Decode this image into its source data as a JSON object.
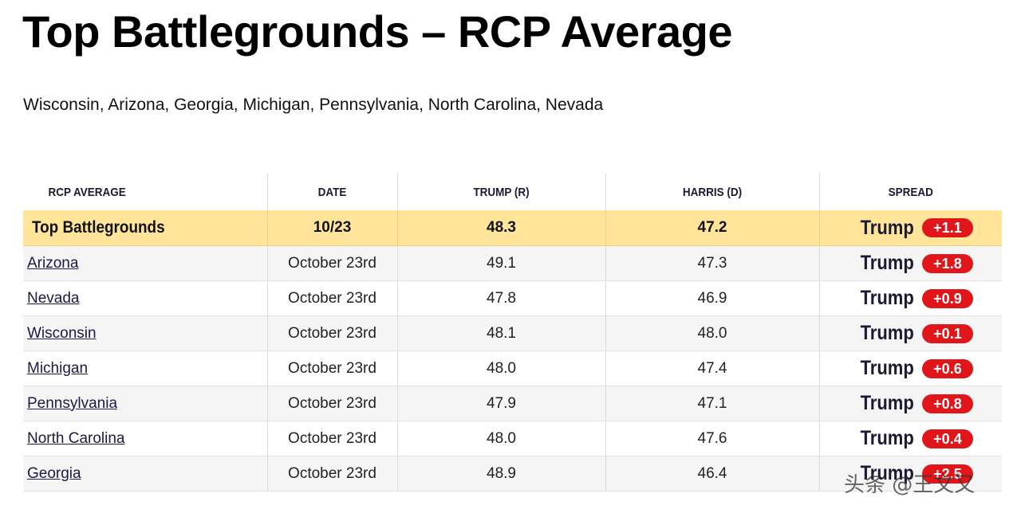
{
  "header": {
    "title": "Top Battlegrounds – RCP Average",
    "subtitle": "Wisconsin, Arizona, Georgia, Michigan, Pennsylvania, North Carolina, Nevada"
  },
  "table": {
    "columns": [
      "RCP AVERAGE",
      "DATE",
      "TRUMP (R)",
      "HARRIS (D)",
      "SPREAD"
    ],
    "summary": {
      "name": "Top Battlegrounds",
      "date": "10/23",
      "trump": "48.3",
      "harris": "47.2",
      "spread_leader": "Trump",
      "spread_value": "+1.1"
    },
    "rows": [
      {
        "state": "Arizona",
        "date": "October 23rd",
        "trump": "49.1",
        "harris": "47.3",
        "spread_leader": "Trump",
        "spread_value": "+1.8"
      },
      {
        "state": "Nevada",
        "date": "October 23rd",
        "trump": "47.8",
        "harris": "46.9",
        "spread_leader": "Trump",
        "spread_value": "+0.9"
      },
      {
        "state": "Wisconsin",
        "date": "October 23rd",
        "trump": "48.1",
        "harris": "48.0",
        "spread_leader": "Trump",
        "spread_value": "+0.1"
      },
      {
        "state": "Michigan",
        "date": "October 23rd",
        "trump": "48.0",
        "harris": "47.4",
        "spread_leader": "Trump",
        "spread_value": "+0.6"
      },
      {
        "state": "Pennsylvania",
        "date": "October 23rd",
        "trump": "47.9",
        "harris": "47.1",
        "spread_leader": "Trump",
        "spread_value": "+0.8"
      },
      {
        "state": "North Carolina",
        "date": "October 23rd",
        "trump": "48.0",
        "harris": "47.6",
        "spread_leader": "Trump",
        "spread_value": "+0.4"
      },
      {
        "state": "Georgia",
        "date": "October 23rd",
        "trump": "48.9",
        "harris": "46.4",
        "spread_leader": "Trump",
        "spread_value": "+2.5"
      }
    ]
  },
  "watermark": {
    "text": "头条 @王文又"
  },
  "colors": {
    "summary_bg": "#ffe49a",
    "badge_red": "#e0161b",
    "alt_row_bg": "#f5f5f5",
    "link": "#1a1a44"
  }
}
